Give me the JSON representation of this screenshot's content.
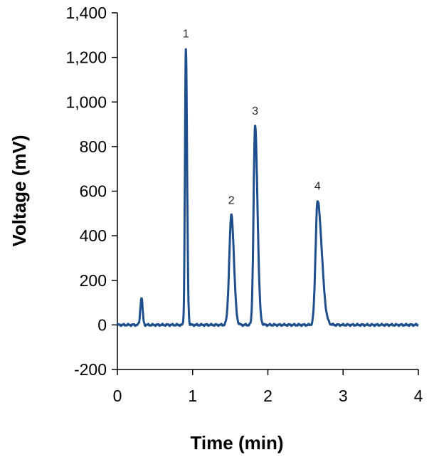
{
  "chart_data": {
    "type": "line",
    "title": "",
    "xlabel": "Time (min)",
    "ylabel": "Voltage (mV)",
    "xlim": [
      0,
      4
    ],
    "ylim": [
      -200,
      1400
    ],
    "xticks": [
      "0",
      "1",
      "2",
      "3",
      "4"
    ],
    "yticks": [
      "-200",
      "0",
      "200",
      "400",
      "600",
      "800",
      "1,000",
      "1,200",
      "1,400"
    ],
    "grid": false,
    "legend": "none",
    "line_color": "#1f4e8c",
    "baseline": 0,
    "peaks": [
      {
        "label": "",
        "time": 0.32,
        "height": 122,
        "width": 0.015,
        "tail": 0.0
      },
      {
        "label": "1",
        "time": 0.91,
        "height": 1238,
        "width": 0.012,
        "tail": 0.004
      },
      {
        "label": "2",
        "time": 1.515,
        "height": 492,
        "width": 0.028,
        "tail": 0.006
      },
      {
        "label": "3",
        "time": 1.83,
        "height": 892,
        "width": 0.02,
        "tail": 0.012
      },
      {
        "label": "4",
        "time": 2.66,
        "height": 555,
        "width": 0.026,
        "tail": 0.03
      }
    ]
  }
}
